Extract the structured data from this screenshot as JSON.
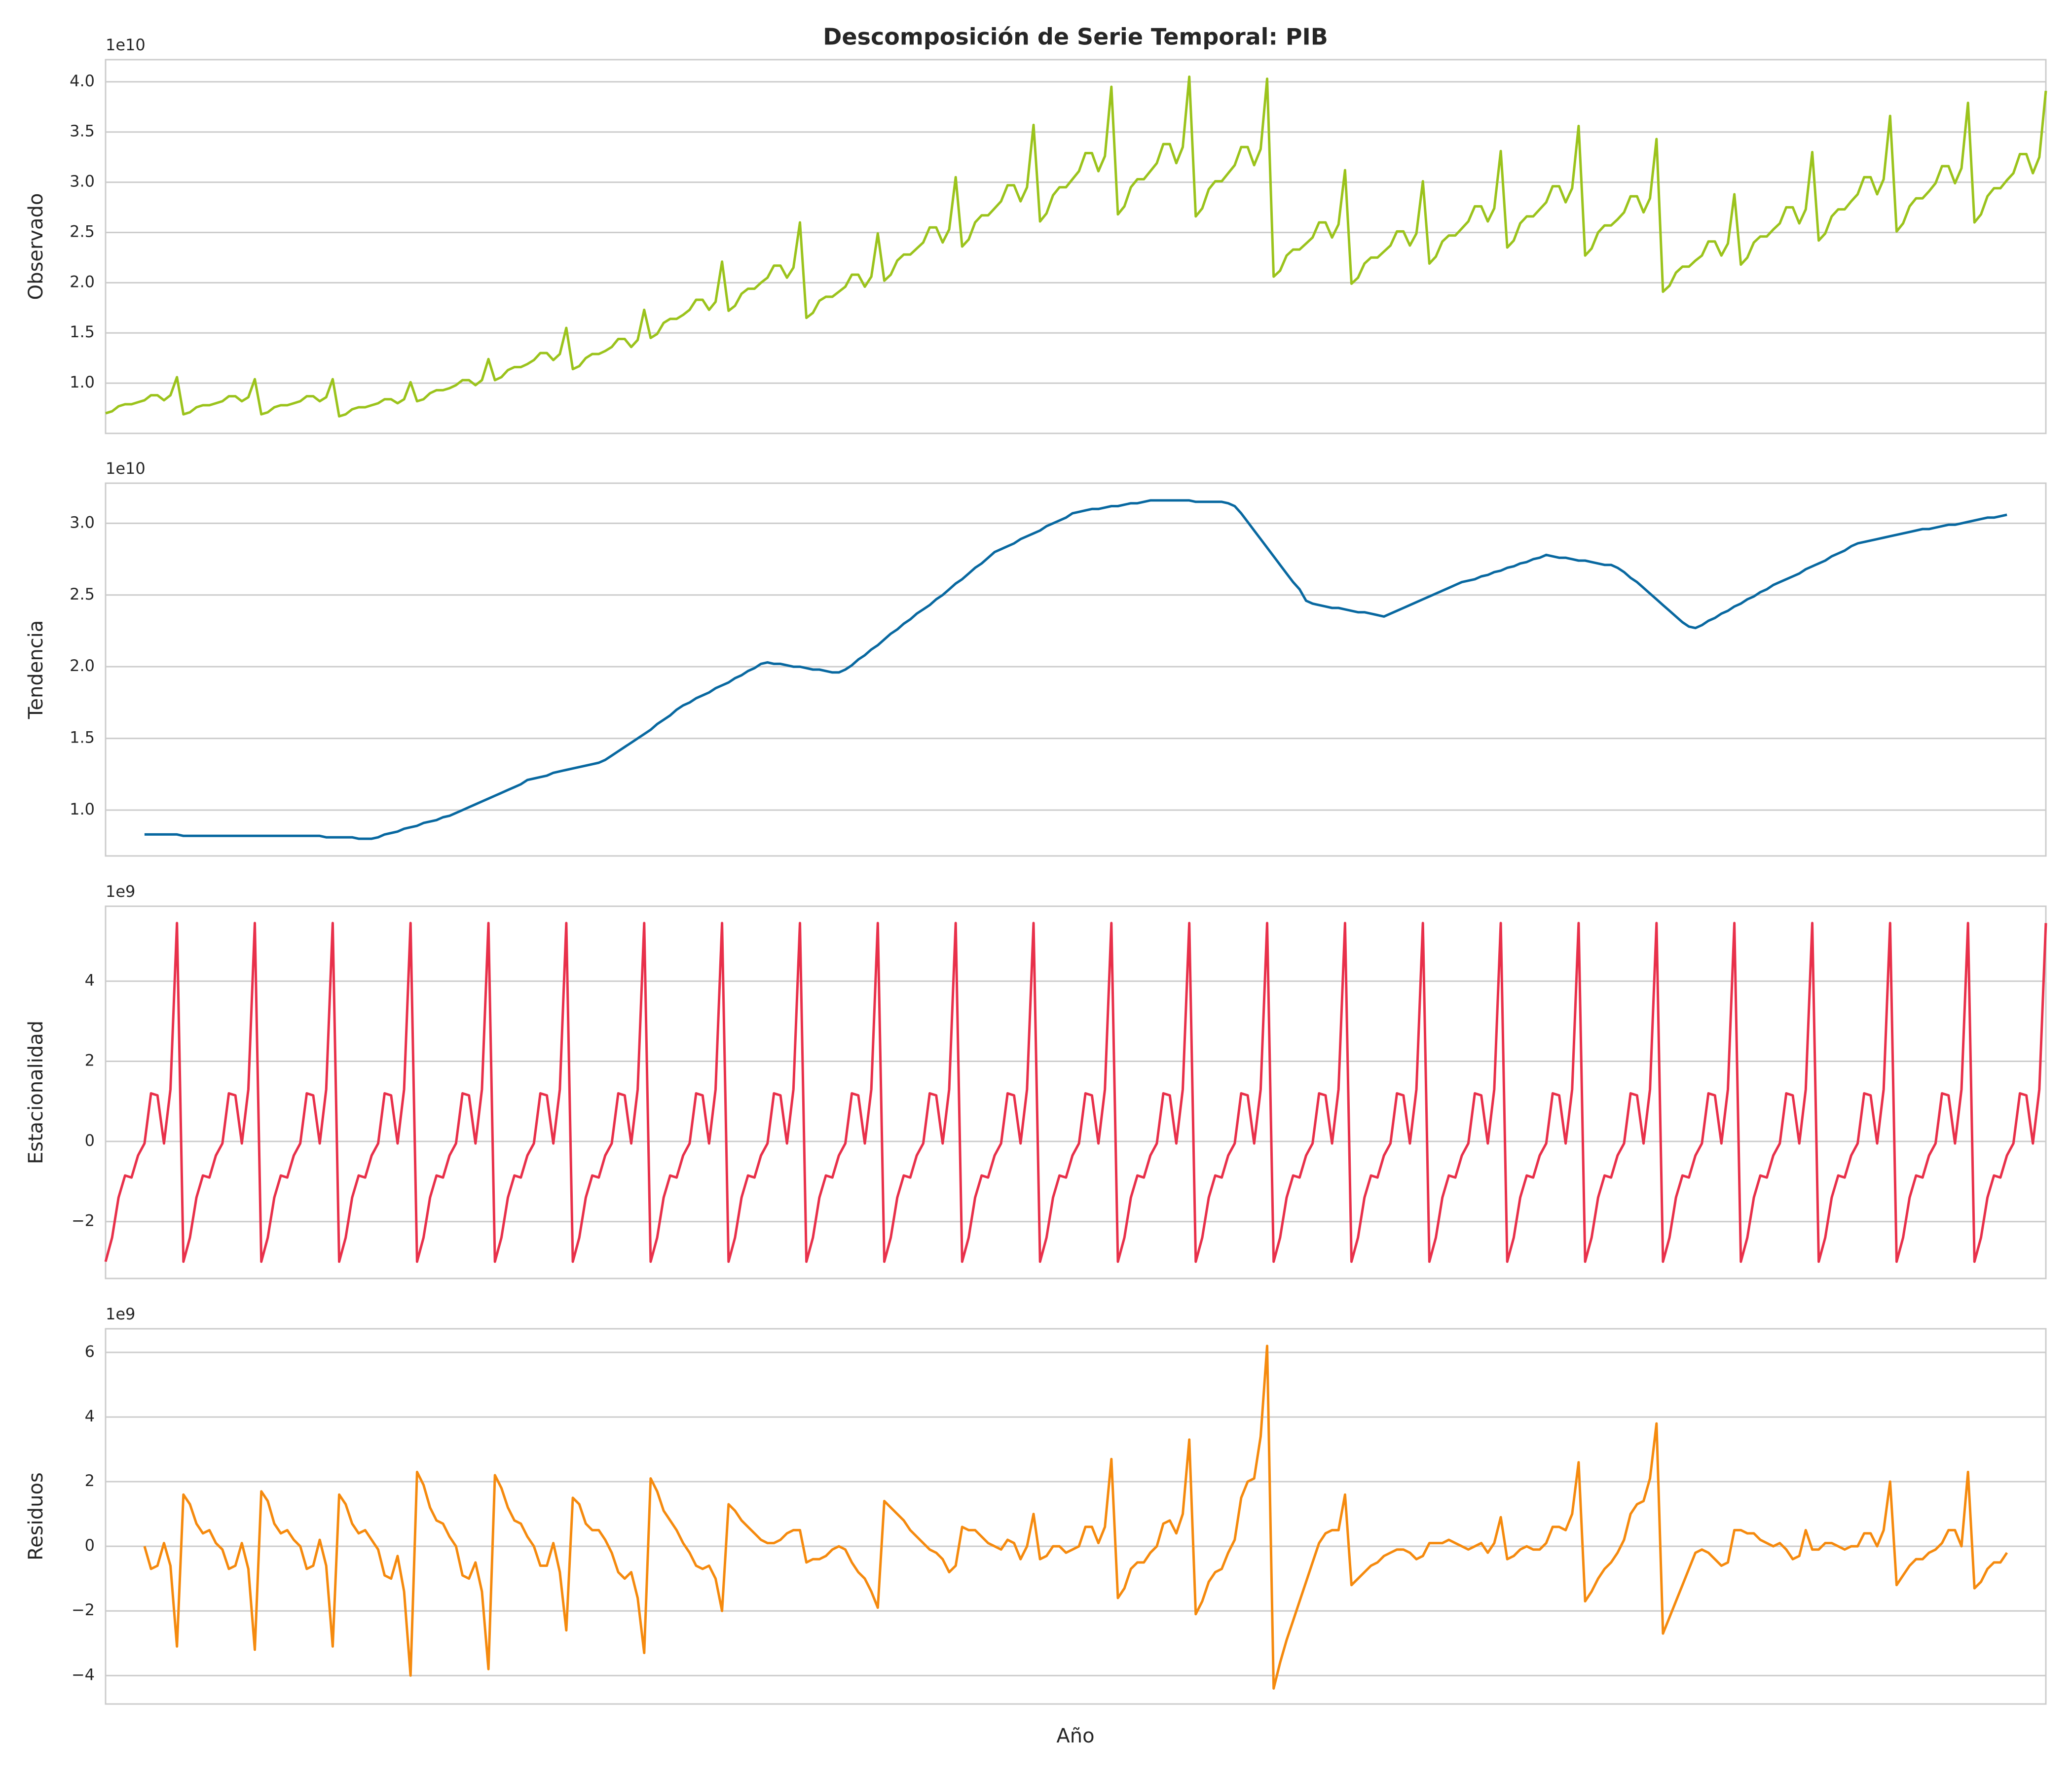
{
  "chart_data": [
    {
      "type": "line",
      "title": "Descomposición de Serie Temporal: PIB",
      "ylabel": "Observado",
      "offset_label": "1e10",
      "color": "#9bc31c",
      "grid": true,
      "ylim": [
        0.5,
        4.22
      ],
      "yticks": [
        {
          "value": 1,
          "label": "1.0"
        },
        1.5,
        {
          "value": 2,
          "label": "2.0"
        },
        2.5,
        {
          "value": 3,
          "label": "3.0"
        },
        3.5,
        {
          "value": 4,
          "label": "4.0"
        }
      ],
      "values": [
        0.7,
        0.72,
        0.77,
        0.79,
        0.79,
        0.81,
        0.83,
        0.88,
        0.88,
        0.83,
        0.88,
        1.06,
        0.69,
        0.71,
        0.76,
        0.78,
        0.78,
        0.8,
        0.82,
        0.87,
        0.87,
        0.82,
        0.86,
        1.04,
        0.69,
        0.71,
        0.76,
        0.78,
        0.78,
        0.8,
        0.82,
        0.87,
        0.87,
        0.82,
        0.86,
        1.04,
        0.67,
        0.69,
        0.74,
        0.76,
        0.76,
        0.78,
        0.8,
        0.84,
        0.84,
        0.8,
        0.84,
        1.01,
        0.82,
        0.84,
        0.9,
        0.93,
        0.93,
        0.95,
        0.98,
        1.03,
        1.03,
        0.98,
        1.03,
        1.24,
        1.03,
        1.06,
        1.13,
        1.16,
        1.16,
        1.19,
        1.23,
        1.3,
        1.3,
        1.23,
        1.29,
        1.55,
        1.14,
        1.17,
        1.25,
        1.29,
        1.29,
        1.32,
        1.36,
        1.44,
        1.44,
        1.36,
        1.43,
        1.73,
        1.45,
        1.49,
        1.6,
        1.64,
        1.64,
        1.68,
        1.73,
        1.83,
        1.83,
        1.73,
        1.81,
        2.21,
        1.72,
        1.77,
        1.89,
        1.94,
        1.94,
        2.0,
        2.05,
        2.17,
        2.17,
        2.05,
        2.15,
        2.6,
        1.65,
        1.7,
        1.82,
        1.86,
        1.86,
        1.91,
        1.96,
        2.08,
        2.08,
        1.96,
        2.06,
        2.49,
        2.02,
        2.08,
        2.22,
        2.28,
        2.28,
        2.34,
        2.4,
        2.55,
        2.55,
        2.4,
        2.53,
        3.05,
        2.36,
        2.43,
        2.6,
        2.67,
        2.67,
        2.74,
        2.81,
        2.97,
        2.97,
        2.81,
        2.95,
        3.57,
        2.61,
        2.69,
        2.87,
        2.95,
        2.95,
        3.03,
        3.11,
        3.29,
        3.29,
        3.11,
        3.26,
        3.95,
        2.68,
        2.76,
        2.95,
        3.03,
        3.03,
        3.11,
        3.19,
        3.38,
        3.38,
        3.19,
        3.35,
        4.05,
        2.66,
        2.74,
        2.93,
        3.01,
        3.01,
        3.09,
        3.17,
        3.35,
        3.35,
        3.17,
        3.33,
        4.03,
        2.06,
        2.12,
        2.27,
        2.33,
        2.33,
        2.39,
        2.45,
        2.6,
        2.6,
        2.45,
        2.58,
        3.12,
        1.99,
        2.05,
        2.19,
        2.25,
        2.25,
        2.31,
        2.37,
        2.51,
        2.51,
        2.37,
        2.49,
        3.01,
        2.19,
        2.26,
        2.41,
        2.47,
        2.47,
        2.54,
        2.61,
        2.76,
        2.76,
        2.61,
        2.74,
        3.31,
        2.35,
        2.42,
        2.59,
        2.66,
        2.66,
        2.73,
        2.8,
        2.96,
        2.96,
        2.8,
        2.94,
        3.56,
        2.27,
        2.34,
        2.5,
        2.57,
        2.57,
        2.63,
        2.7,
        2.86,
        2.86,
        2.7,
        2.84,
        3.43,
        1.91,
        1.97,
        2.1,
        2.16,
        2.16,
        2.22,
        2.27,
        2.41,
        2.41,
        2.27,
        2.39,
        2.88,
        2.18,
        2.25,
        2.4,
        2.46,
        2.46,
        2.53,
        2.59,
        2.75,
        2.75,
        2.59,
        2.73,
        3.3,
        2.42,
        2.49,
        2.66,
        2.73,
        2.73,
        2.81,
        2.88,
        3.05,
        3.05,
        2.88,
        3.03,
        3.66,
        2.51,
        2.59,
        2.76,
        2.84,
        2.84,
        2.91,
        2.99,
        3.16,
        3.16,
        2.99,
        3.14,
        3.79,
        2.6,
        2.68,
        2.86,
        2.94,
        2.94,
        3.02,
        3.09,
        3.28,
        3.28,
        3.09,
        3.25,
        3.91
      ]
    },
    {
      "type": "line",
      "ylabel": "Tendencia",
      "offset_label": "1e10",
      "color": "#0868a0",
      "grid": true,
      "ylim": [
        0.68,
        3.28
      ],
      "yticks": [
        {
          "value": 1,
          "label": "1.0"
        },
        1.5,
        {
          "value": 2,
          "label": "2.0"
        },
        2.5,
        {
          "value": 3,
          "label": "3.0"
        }
      ],
      "values": [
        null,
        null,
        null,
        null,
        null,
        null,
        0.83,
        0.83,
        0.83,
        0.83,
        0.83,
        0.83,
        0.82,
        0.82,
        0.82,
        0.82,
        0.82,
        0.82,
        0.82,
        0.82,
        0.82,
        0.82,
        0.82,
        0.82,
        0.82,
        0.82,
        0.82,
        0.82,
        0.82,
        0.82,
        0.82,
        0.82,
        0.82,
        0.82,
        0.81,
        0.81,
        0.81,
        0.81,
        0.81,
        0.8,
        0.8,
        0.8,
        0.81,
        0.83,
        0.84,
        0.85,
        0.87,
        0.88,
        0.89,
        0.91,
        0.92,
        0.93,
        0.95,
        0.96,
        0.98,
        1.0,
        1.02,
        1.04,
        1.06,
        1.08,
        1.1,
        1.12,
        1.14,
        1.16,
        1.18,
        1.21,
        1.22,
        1.23,
        1.24,
        1.26,
        1.27,
        1.28,
        1.29,
        1.3,
        1.31,
        1.32,
        1.33,
        1.35,
        1.38,
        1.41,
        1.44,
        1.47,
        1.5,
        1.53,
        1.56,
        1.6,
        1.63,
        1.66,
        1.7,
        1.73,
        1.75,
        1.78,
        1.8,
        1.82,
        1.85,
        1.87,
        1.89,
        1.92,
        1.94,
        1.97,
        1.99,
        2.02,
        2.03,
        2.02,
        2.02,
        2.01,
        2.0,
        2.0,
        1.99,
        1.98,
        1.98,
        1.97,
        1.96,
        1.96,
        1.98,
        2.01,
        2.05,
        2.08,
        2.12,
        2.15,
        2.19,
        2.23,
        2.26,
        2.3,
        2.33,
        2.37,
        2.4,
        2.43,
        2.47,
        2.5,
        2.54,
        2.58,
        2.61,
        2.65,
        2.69,
        2.72,
        2.76,
        2.8,
        2.82,
        2.84,
        2.86,
        2.89,
        2.91,
        2.93,
        2.95,
        2.98,
        3.0,
        3.02,
        3.04,
        3.07,
        3.08,
        3.09,
        3.1,
        3.1,
        3.11,
        3.12,
        3.12,
        3.13,
        3.14,
        3.14,
        3.15,
        3.16,
        3.16,
        3.16,
        3.16,
        3.16,
        3.16,
        3.16,
        3.15,
        3.15,
        3.15,
        3.15,
        3.15,
        3.14,
        3.12,
        3.07,
        3.01,
        2.95,
        2.89,
        2.83,
        2.77,
        2.71,
        2.65,
        2.59,
        2.54,
        2.46,
        2.44,
        2.43,
        2.42,
        2.41,
        2.41,
        2.4,
        2.39,
        2.38,
        2.38,
        2.37,
        2.36,
        2.35,
        2.37,
        2.39,
        2.41,
        2.43,
        2.45,
        2.47,
        2.49,
        2.51,
        2.53,
        2.55,
        2.57,
        2.59,
        2.6,
        2.61,
        2.63,
        2.64,
        2.66,
        2.67,
        2.69,
        2.7,
        2.72,
        2.73,
        2.75,
        2.76,
        2.78,
        2.77,
        2.76,
        2.76,
        2.75,
        2.74,
        2.74,
        2.73,
        2.72,
        2.71,
        2.71,
        2.69,
        2.66,
        2.62,
        2.59,
        2.55,
        2.51,
        2.47,
        2.43,
        2.39,
        2.35,
        2.31,
        2.28,
        2.27,
        2.29,
        2.32,
        2.34,
        2.37,
        2.39,
        2.42,
        2.44,
        2.47,
        2.49,
        2.52,
        2.54,
        2.57,
        2.59,
        2.61,
        2.63,
        2.65,
        2.68,
        2.7,
        2.72,
        2.74,
        2.77,
        2.79,
        2.81,
        2.84,
        2.86,
        2.87,
        2.88,
        2.89,
        2.9,
        2.91,
        2.92,
        2.93,
        2.94,
        2.95,
        2.96,
        2.96,
        2.97,
        2.98,
        2.99,
        2.99,
        3.0,
        3.01,
        3.02,
        3.03,
        3.04,
        3.04,
        3.05,
        3.06,
        null,
        null,
        null,
        null,
        null,
        null
      ]
    },
    {
      "type": "line",
      "ylabel": "Estacionalidad",
      "offset_label": "1e9",
      "color": "#e8304a",
      "grid": true,
      "ylim": [
        -3.42,
        5.87
      ],
      "yticks": [
        {
          "value": -2,
          "label": "−2"
        },
        0,
        2,
        4
      ],
      "values": [
        -3.0,
        -2.4,
        -1.4,
        -0.85,
        -0.9,
        -0.35,
        -0.05,
        1.2,
        1.15,
        -0.05,
        1.3,
        5.45,
        -3.0,
        -2.4,
        -1.4,
        -0.85,
        -0.9,
        -0.35,
        -0.05,
        1.2,
        1.15,
        -0.05,
        1.3,
        5.45,
        -3.0,
        -2.4,
        -1.4,
        -0.85,
        -0.9,
        -0.35,
        -0.05,
        1.2,
        1.15,
        -0.05,
        1.3,
        5.45,
        -3.0,
        -2.4,
        -1.4,
        -0.85,
        -0.9,
        -0.35,
        -0.05,
        1.2,
        1.15,
        -0.05,
        1.3,
        5.45,
        -3.0,
        -2.4,
        -1.4,
        -0.85,
        -0.9,
        -0.35,
        -0.05,
        1.2,
        1.15,
        -0.05,
        1.3,
        5.45,
        -3.0,
        -2.4,
        -1.4,
        -0.85,
        -0.9,
        -0.35,
        -0.05,
        1.2,
        1.15,
        -0.05,
        1.3,
        5.45,
        -3.0,
        -2.4,
        -1.4,
        -0.85,
        -0.9,
        -0.35,
        -0.05,
        1.2,
        1.15,
        -0.05,
        1.3,
        5.45,
        -3.0,
        -2.4,
        -1.4,
        -0.85,
        -0.9,
        -0.35,
        -0.05,
        1.2,
        1.15,
        -0.05,
        1.3,
        5.45,
        -3.0,
        -2.4,
        -1.4,
        -0.85,
        -0.9,
        -0.35,
        -0.05,
        1.2,
        1.15,
        -0.05,
        1.3,
        5.45,
        -3.0,
        -2.4,
        -1.4,
        -0.85,
        -0.9,
        -0.35,
        -0.05,
        1.2,
        1.15,
        -0.05,
        1.3,
        5.45,
        -3.0,
        -2.4,
        -1.4,
        -0.85,
        -0.9,
        -0.35,
        -0.05,
        1.2,
        1.15,
        -0.05,
        1.3,
        5.45,
        -3.0,
        -2.4,
        -1.4,
        -0.85,
        -0.9,
        -0.35,
        -0.05,
        1.2,
        1.15,
        -0.05,
        1.3,
        5.45,
        -3.0,
        -2.4,
        -1.4,
        -0.85,
        -0.9,
        -0.35,
        -0.05,
        1.2,
        1.15,
        -0.05,
        1.3,
        5.45,
        -3.0,
        -2.4,
        -1.4,
        -0.85,
        -0.9,
        -0.35,
        -0.05,
        1.2,
        1.15,
        -0.05,
        1.3,
        5.45,
        -3.0,
        -2.4,
        -1.4,
        -0.85,
        -0.9,
        -0.35,
        -0.05,
        1.2,
        1.15,
        -0.05,
        1.3,
        5.45,
        -3.0,
        -2.4,
        -1.4,
        -0.85,
        -0.9,
        -0.35,
        -0.05,
        1.2,
        1.15,
        -0.05,
        1.3,
        5.45,
        -3.0,
        -2.4,
        -1.4,
        -0.85,
        -0.9,
        -0.35,
        -0.05,
        1.2,
        1.15,
        -0.05,
        1.3,
        5.45,
        -3.0,
        -2.4,
        -1.4,
        -0.85,
        -0.9,
        -0.35,
        -0.05,
        1.2,
        1.15,
        -0.05,
        1.3,
        5.45,
        -3.0,
        -2.4,
        -1.4,
        -0.85,
        -0.9,
        -0.35,
        -0.05,
        1.2,
        1.15,
        -0.05,
        1.3,
        5.45,
        -3.0,
        -2.4,
        -1.4,
        -0.85,
        -0.9,
        -0.35,
        -0.05,
        1.2,
        1.15,
        -0.05,
        1.3,
        5.45,
        -3.0,
        -2.4,
        -1.4,
        -0.85,
        -0.9,
        -0.35,
        -0.05,
        1.2,
        1.15,
        -0.05,
        1.3,
        5.45,
        -3.0,
        -2.4,
        -1.4,
        -0.85,
        -0.9,
        -0.35,
        -0.05,
        1.2,
        1.15,
        -0.05,
        1.3,
        5.45,
        -3.0,
        -2.4,
        -1.4,
        -0.85,
        -0.9,
        -0.35,
        -0.05,
        1.2,
        1.15,
        -0.05,
        1.3,
        5.45,
        -3.0,
        -2.4,
        -1.4,
        -0.85,
        -0.9,
        -0.35,
        -0.05,
        1.2,
        1.15,
        -0.05,
        1.3,
        5.45,
        -3.0,
        -2.4,
        -1.4,
        -0.85,
        -0.9,
        -0.35,
        -0.05,
        1.2,
        1.15,
        -0.05,
        1.3,
        5.45
      ]
    },
    {
      "type": "line",
      "ylabel": "Residuos",
      "xlabel": "Año",
      "offset_label": "1e9",
      "color": "#f58a0e",
      "grid": true,
      "ylim": [
        -4.88,
        6.73
      ],
      "yticks": [
        {
          "value": -4,
          "label": "−4"
        },
        {
          "value": -2,
          "label": "−2"
        },
        0,
        2,
        4,
        6
      ],
      "values": [
        null,
        null,
        null,
        null,
        null,
        null,
        0.0,
        -0.7,
        -0.6,
        0.1,
        -0.6,
        -3.1,
        1.6,
        1.3,
        0.7,
        0.4,
        0.5,
        0.1,
        -0.1,
        -0.7,
        -0.6,
        0.1,
        -0.7,
        -3.2,
        1.7,
        1.4,
        0.7,
        0.4,
        0.5,
        0.2,
        0.0,
        -0.7,
        -0.6,
        0.2,
        -0.6,
        -3.1,
        1.6,
        1.3,
        0.7,
        0.4,
        0.5,
        0.2,
        -0.1,
        -0.9,
        -1.0,
        -0.3,
        -1.4,
        -4.0,
        2.3,
        1.9,
        1.2,
        0.8,
        0.7,
        0.3,
        0.0,
        -0.9,
        -1.0,
        -0.5,
        -1.4,
        -3.8,
        2.2,
        1.8,
        1.2,
        0.8,
        0.7,
        0.3,
        0.0,
        -0.6,
        -0.6,
        0.1,
        -0.8,
        -2.6,
        1.5,
        1.3,
        0.7,
        0.5,
        0.5,
        0.2,
        -0.2,
        -0.8,
        -1.0,
        -0.8,
        -1.6,
        -3.3,
        2.1,
        1.7,
        1.1,
        0.8,
        0.5,
        0.1,
        -0.2,
        -0.6,
        -0.7,
        -0.6,
        -1.0,
        -2.0,
        1.3,
        1.1,
        0.8,
        0.6,
        0.4,
        0.2,
        0.1,
        0.1,
        0.2,
        0.4,
        0.5,
        0.5,
        -0.5,
        -0.4,
        -0.4,
        -0.3,
        -0.1,
        0.0,
        -0.1,
        -0.5,
        -0.8,
        -1.0,
        -1.4,
        -1.9,
        1.4,
        1.2,
        1.0,
        0.8,
        0.5,
        0.3,
        0.1,
        -0.1,
        -0.2,
        -0.4,
        -0.8,
        -0.6,
        0.6,
        0.5,
        0.5,
        0.3,
        0.1,
        0.0,
        -0.1,
        0.2,
        0.1,
        -0.4,
        0.0,
        1.0,
        -0.4,
        -0.3,
        0.0,
        0.0,
        -0.2,
        -0.1,
        0.0,
        0.6,
        0.6,
        0.1,
        0.6,
        2.7,
        -1.6,
        -1.3,
        -0.7,
        -0.5,
        -0.5,
        -0.2,
        0.0,
        0.7,
        0.8,
        0.4,
        1.0,
        3.3,
        -2.1,
        -1.7,
        -1.1,
        -0.8,
        -0.7,
        -0.2,
        0.2,
        1.5,
        2.0,
        2.1,
        3.4,
        6.2,
        -4.4,
        -3.6,
        -2.9,
        -2.3,
        -1.7,
        -1.1,
        -0.5,
        0.1,
        0.4,
        0.5,
        0.5,
        1.6,
        -1.2,
        -1.0,
        -0.8,
        -0.6,
        -0.5,
        -0.3,
        -0.2,
        -0.1,
        -0.1,
        -0.2,
        -0.4,
        -0.3,
        0.1,
        0.1,
        0.1,
        0.2,
        0.1,
        0.0,
        -0.1,
        0.0,
        0.1,
        -0.2,
        0.1,
        0.9,
        -0.4,
        -0.3,
        -0.1,
        0.0,
        -0.1,
        -0.1,
        0.1,
        0.6,
        0.6,
        0.5,
        1.0,
        2.6,
        -1.7,
        -1.4,
        -1.0,
        -0.7,
        -0.5,
        -0.2,
        0.2,
        1.0,
        1.3,
        1.4,
        2.1,
        3.8,
        -2.7,
        -2.2,
        -1.7,
        -1.2,
        -0.7,
        -0.2,
        -0.1,
        -0.2,
        -0.4,
        -0.6,
        -0.5,
        0.5,
        0.5,
        0.4,
        0.4,
        0.2,
        0.1,
        0.0,
        0.1,
        -0.1,
        -0.4,
        -0.3,
        0.5,
        -0.1,
        -0.1,
        0.1,
        0.1,
        0.0,
        -0.1,
        0.0,
        0.0,
        0.4,
        0.4,
        0.0,
        0.5,
        2.0,
        -1.2,
        -0.9,
        -0.6,
        -0.4,
        -0.4,
        -0.2,
        -0.1,
        0.1,
        0.5,
        0.5,
        0.0,
        2.3,
        -1.3,
        -1.1,
        -0.7,
        -0.5,
        -0.5,
        -0.2,
        null,
        null,
        null,
        null,
        null,
        null
      ]
    }
  ]
}
